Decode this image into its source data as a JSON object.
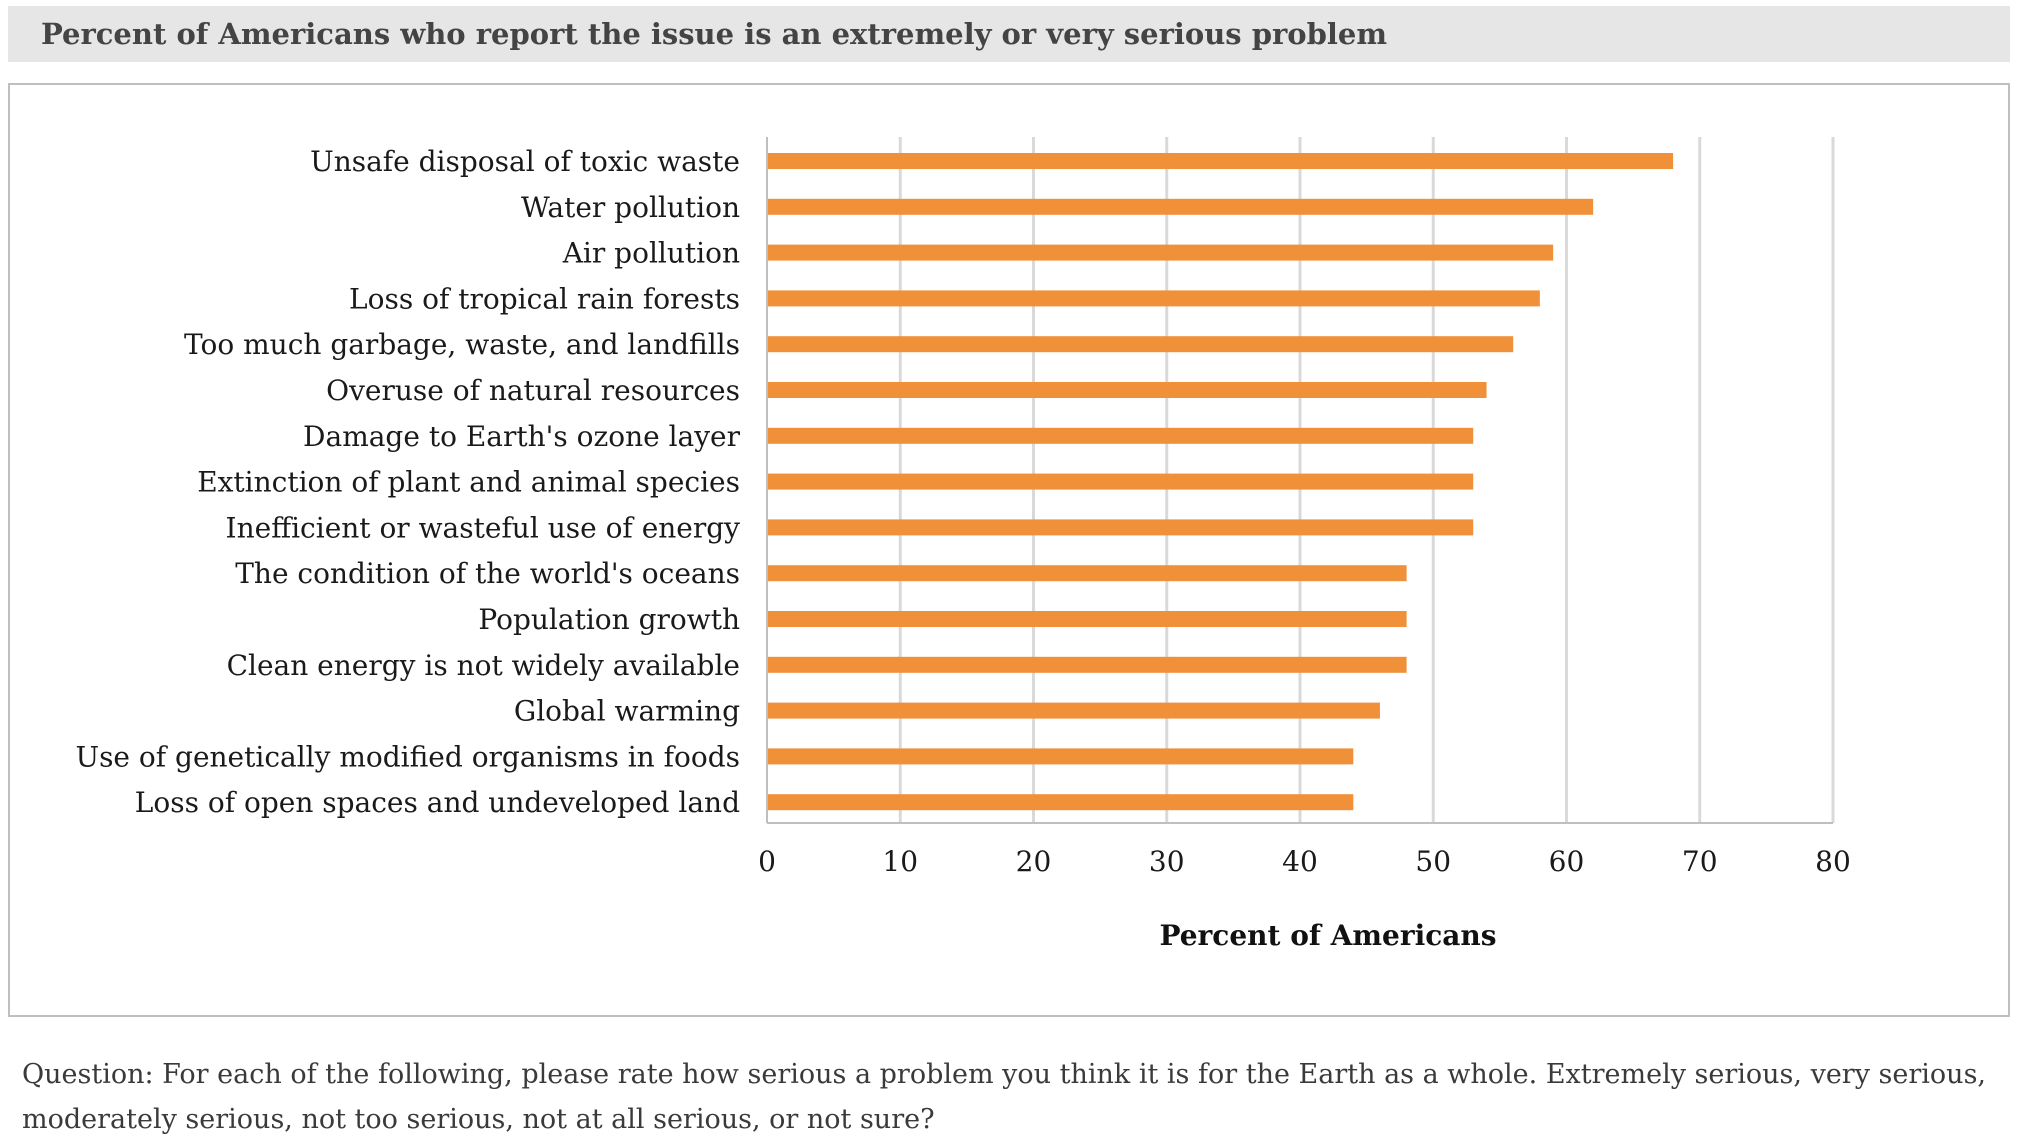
{
  "title": "Percent of Americans who report the issue is an extremely or very serious problem",
  "footnote": "Question: For each of the following, please rate how serious a problem you think it is for the Earth as a whole. Extremely serious, very serious, moderately serious, not too serious, not at all serious, or not sure?",
  "colors": {
    "bar": "#F0913A",
    "grid": "#d9d9d9",
    "axis": "#bfbfbf",
    "title_bg": "#e6e6e6"
  },
  "chart_data": {
    "type": "bar",
    "orientation": "horizontal",
    "categories": [
      "Unsafe disposal of toxic waste",
      "Water pollution",
      "Air pollution",
      "Loss of tropical rain forests",
      "Too much garbage, waste, and landfills",
      "Overuse of natural resources",
      "Damage to Earth's ozone layer",
      "Extinction of plant and animal species",
      "Inefficient or wasteful use of energy",
      "The condition of the world's oceans",
      "Population growth",
      "Clean energy is not widely available",
      "Global warming",
      "Use of genetically modified organisms in foods",
      "Loss of open spaces and undeveloped land"
    ],
    "values": [
      68,
      62,
      59,
      58,
      56,
      54,
      53,
      53,
      53,
      48,
      48,
      48,
      46,
      44,
      44
    ],
    "xlabel": "Percent of Americans",
    "ylabel": "",
    "xlim": [
      0,
      80
    ],
    "xticks": [
      0,
      10,
      20,
      30,
      40,
      50,
      60,
      70,
      80
    ],
    "grid": "vertical"
  }
}
